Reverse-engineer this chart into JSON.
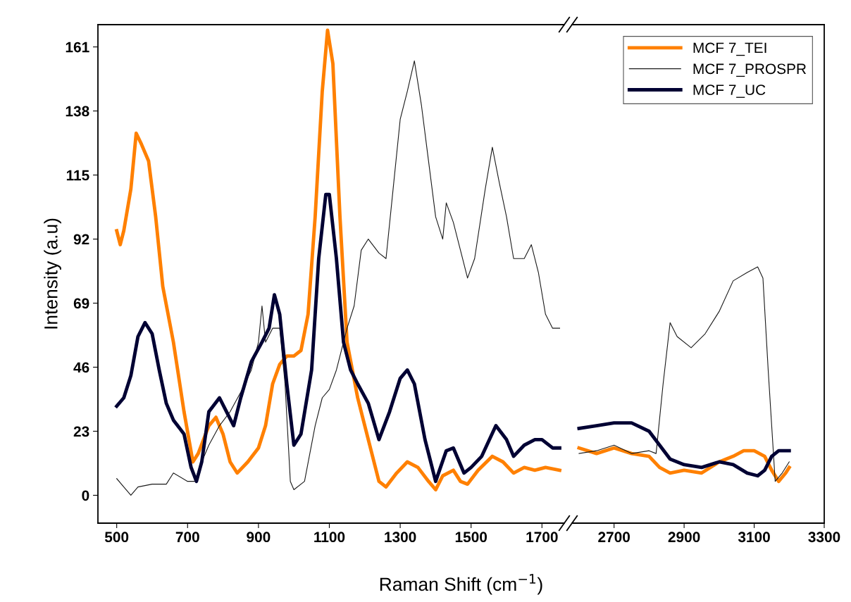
{
  "chart_data": [
    {
      "type": "line",
      "ylabel": "Intensity (a.u)",
      "xlabel": "Raman Shift (cm$^{−1}$)",
      "xlim": [
        447,
        1763
      ],
      "xticks": [
        500,
        700,
        900,
        1100,
        1300,
        1500,
        1700
      ],
      "ylim": [
        -10,
        169
      ],
      "yticks": [
        0,
        23,
        46,
        69,
        92,
        115,
        138,
        161
      ],
      "grid": false,
      "legend": "top right",
      "marker": "none",
      "line_style": "solid",
      "series": [
        {
          "name": "MCF 7_TEI",
          "color": "#ff8000",
          "x": [
            500,
            510,
            520,
            540,
            555,
            570,
            590,
            610,
            630,
            660,
            690,
            715,
            730,
            760,
            780,
            800,
            820,
            840,
            870,
            900,
            920,
            940,
            960,
            980,
            1000,
            1020,
            1040,
            1060,
            1080,
            1095,
            1110,
            1130,
            1150,
            1180,
            1210,
            1240,
            1260,
            1290,
            1320,
            1350,
            1380,
            1400,
            1420,
            1450,
            1470,
            1490,
            1520,
            1560,
            1590,
            1620,
            1650,
            1680,
            1710,
            1750
          ],
          "values": [
            95,
            90,
            95,
            110,
            130,
            126,
            120,
            100,
            75,
            55,
            30,
            12,
            15,
            25,
            28,
            22,
            12,
            8,
            12,
            17,
            25,
            40,
            47,
            50,
            50,
            52,
            65,
            100,
            145,
            167,
            155,
            100,
            55,
            35,
            20,
            5,
            3,
            8,
            12,
            10,
            5,
            2,
            7,
            9,
            5,
            4,
            9,
            14,
            12,
            8,
            10,
            9,
            10,
            9
          ]
        },
        {
          "name": "MCF 7_PROSPR",
          "color": "#1a1a1a",
          "x": [
            500,
            520,
            540,
            560,
            600,
            640,
            660,
            700,
            720,
            740,
            760,
            790,
            820,
            850,
            880,
            900,
            910,
            920,
            940,
            960,
            975,
            990,
            1000,
            1030,
            1060,
            1080,
            1100,
            1120,
            1150,
            1170,
            1190,
            1210,
            1240,
            1260,
            1280,
            1300,
            1320,
            1340,
            1360,
            1380,
            1400,
            1420,
            1430,
            1450,
            1470,
            1490,
            1510,
            1540,
            1560,
            1580,
            1600,
            1620,
            1650,
            1670,
            1690,
            1710,
            1730,
            1750
          ],
          "values": [
            6,
            3,
            0,
            3,
            4,
            4,
            8,
            5,
            5,
            12,
            18,
            25,
            30,
            37,
            45,
            55,
            68,
            55,
            60,
            60,
            40,
            5,
            2,
            5,
            25,
            35,
            38,
            45,
            60,
            68,
            88,
            92,
            87,
            85,
            110,
            135,
            145,
            156,
            140,
            120,
            100,
            92,
            105,
            98,
            88,
            78,
            85,
            110,
            125,
            112,
            100,
            85,
            85,
            90,
            80,
            65,
            60,
            60
          ]
        },
        {
          "name": "MCF 7_UC",
          "color": "#000033",
          "x": [
            500,
            520,
            540,
            560,
            580,
            600,
            620,
            640,
            660,
            690,
            710,
            725,
            740,
            760,
            790,
            810,
            830,
            850,
            880,
            910,
            930,
            945,
            960,
            980,
            1000,
            1020,
            1050,
            1070,
            1090,
            1100,
            1120,
            1140,
            1160,
            1180,
            1210,
            1240,
            1270,
            1300,
            1320,
            1340,
            1370,
            1400,
            1430,
            1450,
            1480,
            1500,
            1530,
            1570,
            1600,
            1620,
            1650,
            1680,
            1700,
            1730,
            1750
          ],
          "values": [
            32,
            35,
            43,
            57,
            62,
            58,
            45,
            33,
            27,
            22,
            10,
            5,
            12,
            30,
            35,
            30,
            25,
            35,
            48,
            55,
            60,
            72,
            65,
            40,
            18,
            22,
            45,
            85,
            108,
            108,
            85,
            55,
            45,
            40,
            33,
            20,
            30,
            42,
            45,
            40,
            20,
            5,
            16,
            17,
            8,
            10,
            14,
            25,
            20,
            14,
            18,
            20,
            20,
            17,
            17
          ]
        }
      ]
    },
    {
      "type": "line",
      "xlim": [
        2580,
        3300
      ],
      "xticks": [
        2700,
        2900,
        3100,
        3300
      ],
      "ylim": [
        -10,
        169
      ],
      "yticks": [
        0,
        23,
        46,
        69,
        92,
        115,
        138,
        161
      ],
      "tick_labels": "x",
      "grid": false,
      "legend": false,
      "marker": "none",
      "line_style": "solid",
      "series": [
        {
          "color": "#ff8000",
          "x": [
            2600,
            2650,
            2700,
            2750,
            2800,
            2830,
            2860,
            2900,
            2950,
            3000,
            3040,
            3070,
            3100,
            3130,
            3150,
            3170,
            3190,
            3200
          ],
          "values": [
            17,
            15,
            17,
            15,
            14,
            10,
            8,
            9,
            8,
            12,
            14,
            16,
            16,
            14,
            9,
            5,
            8,
            10
          ]
        },
        {
          "color": "#1a1a1a",
          "x": [
            2600,
            2650,
            2700,
            2750,
            2800,
            2820,
            2840,
            2860,
            2880,
            2920,
            2960,
            3000,
            3040,
            3080,
            3110,
            3125,
            3140,
            3160,
            3180,
            3200
          ],
          "values": [
            15,
            16,
            18,
            15,
            16,
            15,
            40,
            62,
            57,
            53,
            58,
            66,
            77,
            80,
            82,
            78,
            45,
            5,
            8,
            12
          ]
        },
        {
          "color": "#000033",
          "x": [
            2600,
            2650,
            2700,
            2750,
            2800,
            2830,
            2860,
            2900,
            2950,
            3000,
            3040,
            3080,
            3110,
            3130,
            3150,
            3170,
            3200
          ],
          "values": [
            24,
            25,
            26,
            26,
            23,
            18,
            13,
            11,
            10,
            12,
            11,
            8,
            7,
            9,
            14,
            16,
            16
          ]
        }
      ]
    }
  ]
}
